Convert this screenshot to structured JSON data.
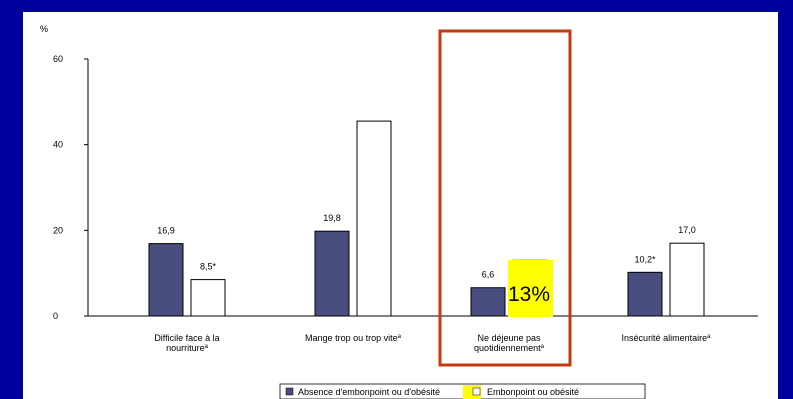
{
  "colors": {
    "background": "#00009c",
    "panel": "#ffffff",
    "series1": "#4a4e7e",
    "series2": "#ffffff",
    "highlight_box": "#c33a12",
    "highlight_fill": "#ffff00"
  },
  "chart_data": {
    "type": "bar",
    "title": "",
    "ylabel": "%",
    "ylim": [
      0,
      60
    ],
    "yticks": [
      "0",
      "20",
      "40",
      "60"
    ],
    "categories": [
      {
        "line1": "Difficile face à la",
        "line2": "nourriture",
        "sup": "a"
      },
      {
        "line1": "Mange trop ou trop vite",
        "line2": "",
        "sup": "a"
      },
      {
        "line1": "Ne déjeune pas",
        "line2": "quotidiennement",
        "sup": "a"
      },
      {
        "line1": "Insécurité alimentaire",
        "line2": "",
        "sup": "a"
      }
    ],
    "series": [
      {
        "name": "Absence d'embonpoint ou d'obésité",
        "values": [
          16.9,
          19.8,
          6.6,
          10.2
        ],
        "labels": [
          "16,9",
          "19,8",
          "6,6",
          "10,2*"
        ]
      },
      {
        "name": "Embonpoint ou obésité",
        "values": [
          8.5,
          45.5,
          13,
          17.0
        ],
        "labels": [
          "8,5*",
          "",
          "",
          "17,0"
        ]
      }
    ],
    "highlight": {
      "category_index": 2,
      "label": "13%"
    },
    "legend_position": "bottom"
  }
}
